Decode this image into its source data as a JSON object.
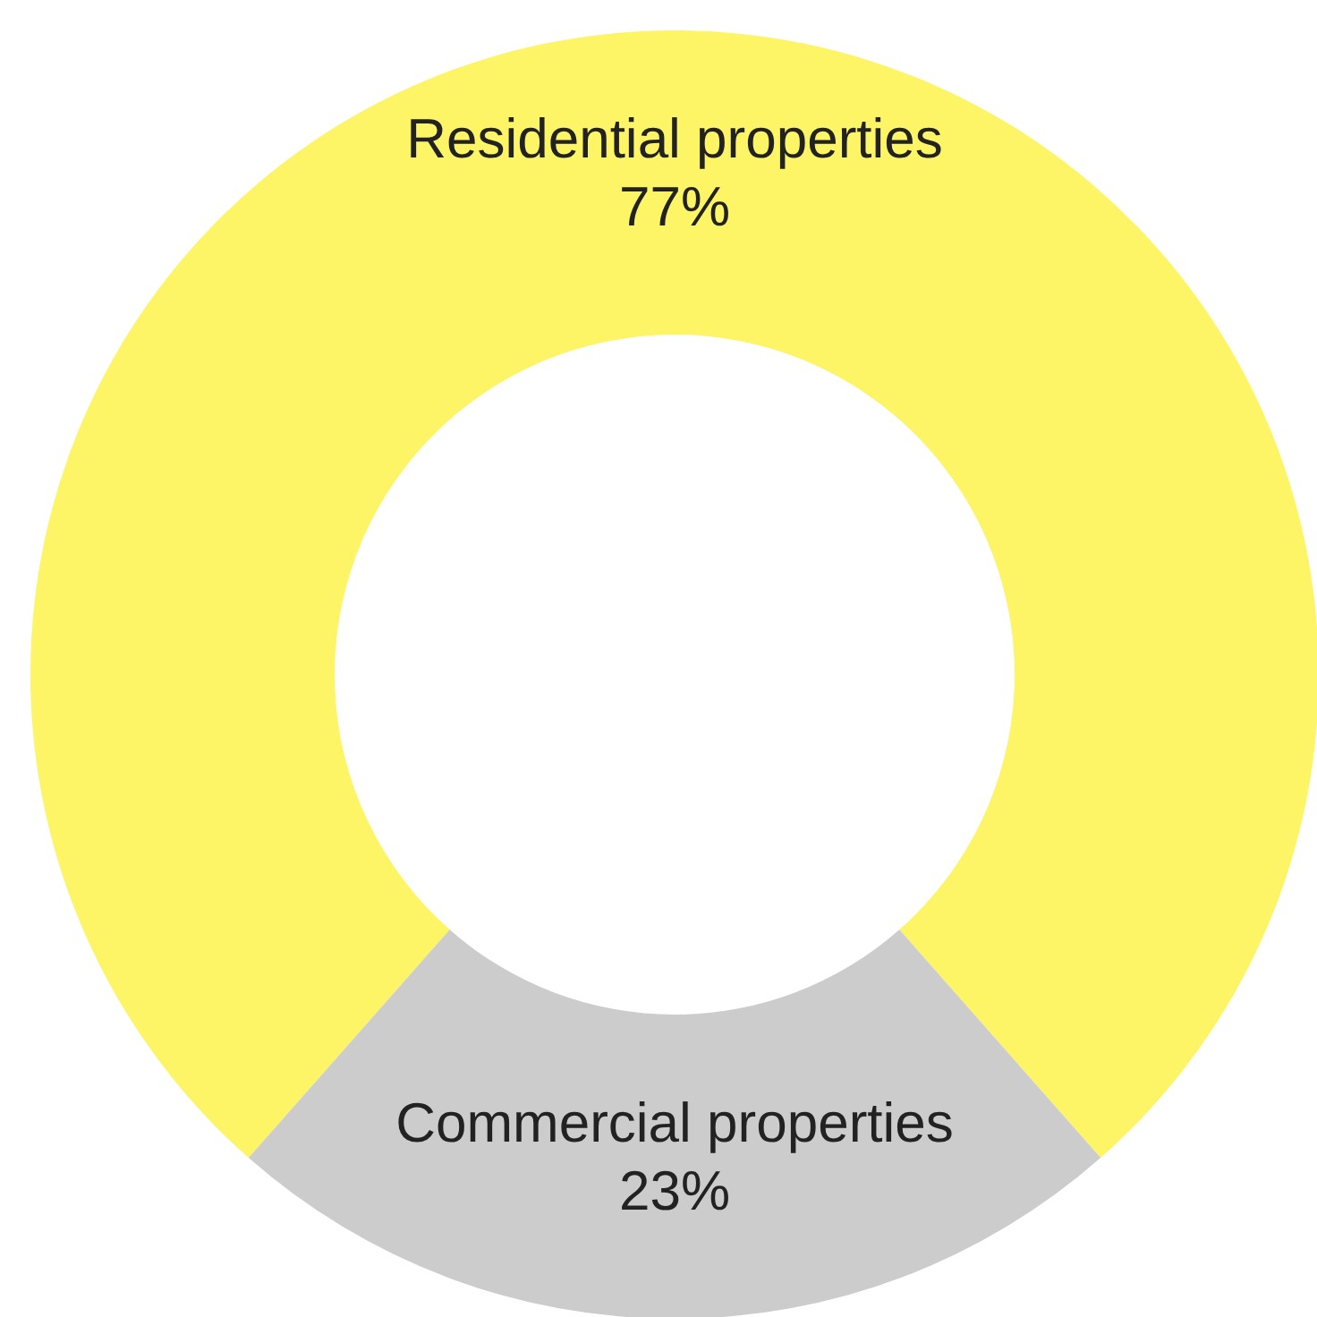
{
  "chart_data": {
    "type": "donut",
    "categories": [
      "Residential properties",
      "Commercial properties"
    ],
    "values": [
      77,
      23
    ],
    "value_labels": [
      "77%",
      "23%"
    ],
    "colors": [
      "#fdf466",
      "#cccccc"
    ]
  }
}
